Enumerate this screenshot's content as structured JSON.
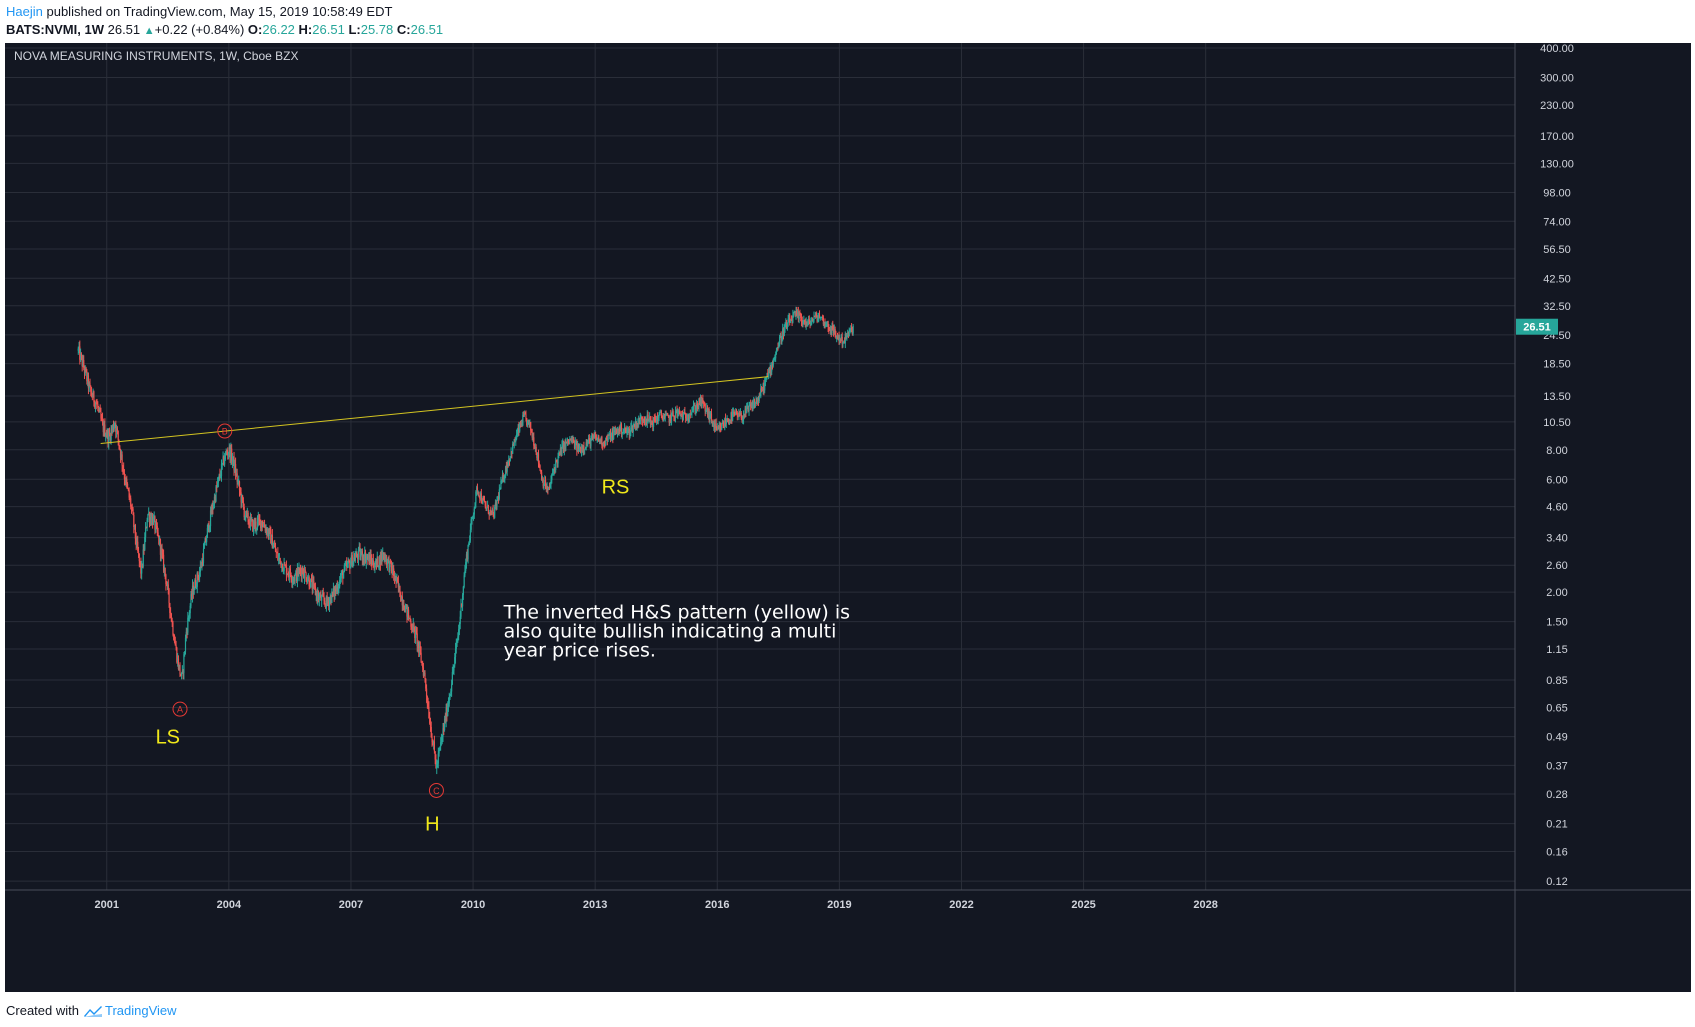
{
  "header": {
    "author": "Haejin",
    "published_text": "published on TradingView.com, May 15, 2019 10:58:49 EDT",
    "symbol": "BATS:NVMI, 1W",
    "last": "26.51",
    "change": "+0.22 (+0.84%)",
    "open_label": "O:",
    "open": "26.22",
    "high_label": "H:",
    "high": "26.51",
    "low_label": "L:",
    "low": "25.78",
    "close_label": "C:",
    "close": "26.51"
  },
  "footer": {
    "created_with": "Created with",
    "brand": "TradingView",
    "logo_icon": "tradingview-logo-icon"
  },
  "colors": {
    "background": "#131722",
    "grid": "#2a2e39",
    "axis_text": "#d1d4dc",
    "up_candle": "#26a69a",
    "down_candle": "#ef5350",
    "trendline": "#d4c521",
    "label_yellow": "#f0e81a",
    "marker_red": "#e53935",
    "price_tag": "#26a69a",
    "annotation_text": "#ffffff"
  },
  "chart_data": {
    "type": "candlestick",
    "title": "NOVA MEASURING INSTRUMENTS, 1W, Cboe BZX",
    "y_scale": "log",
    "ylim": [
      0.11,
      420
    ],
    "xlim": [
      1998.5,
      2035.6
    ],
    "x_ticks": [
      "2001",
      "2004",
      "2007",
      "2010",
      "2013",
      "2016",
      "2019",
      "2022",
      "2025",
      "2028"
    ],
    "y_ticks": [
      "400.00",
      "300.00",
      "230.00",
      "170.00",
      "130.00",
      "98.00",
      "74.00",
      "56.50",
      "42.50",
      "32.50",
      "24.50",
      "18.50",
      "13.50",
      "10.50",
      "8.00",
      "6.00",
      "4.60",
      "3.40",
      "2.60",
      "2.00",
      "1.50",
      "1.15",
      "0.85",
      "0.65",
      "0.49",
      "0.37",
      "0.28",
      "0.21",
      "0.16",
      "0.12"
    ],
    "last_price_tag": "26.51",
    "price_path": [
      [
        2000.3,
        21.0
      ],
      [
        2000.45,
        17.5
      ],
      [
        2000.6,
        14.0
      ],
      [
        2000.75,
        12.5
      ],
      [
        2000.9,
        10.0
      ],
      [
        2001.05,
        9.0
      ],
      [
        2001.2,
        10.5
      ],
      [
        2001.3,
        8.5
      ],
      [
        2001.45,
        6.0
      ],
      [
        2001.6,
        4.6
      ],
      [
        2001.75,
        3.0
      ],
      [
        2001.85,
        2.4
      ],
      [
        2002.0,
        4.3
      ],
      [
        2002.15,
        4.0
      ],
      [
        2002.3,
        3.2
      ],
      [
        2002.45,
        2.3
      ],
      [
        2002.6,
        1.5
      ],
      [
        2002.75,
        1.0
      ],
      [
        2002.85,
        0.85
      ],
      [
        2002.95,
        1.35
      ],
      [
        2003.1,
        2.0
      ],
      [
        2003.3,
        2.5
      ],
      [
        2003.5,
        3.8
      ],
      [
        2003.7,
        5.5
      ],
      [
        2003.9,
        7.5
      ],
      [
        2004.0,
        8.0
      ],
      [
        2004.1,
        7.2
      ],
      [
        2004.25,
        5.5
      ],
      [
        2004.4,
        4.2
      ],
      [
        2004.6,
        3.8
      ],
      [
        2004.8,
        4.0
      ],
      [
        2005.0,
        3.5
      ],
      [
        2005.2,
        2.8
      ],
      [
        2005.4,
        2.5
      ],
      [
        2005.6,
        2.3
      ],
      [
        2005.8,
        2.5
      ],
      [
        2006.0,
        2.2
      ],
      [
        2006.2,
        1.9
      ],
      [
        2006.4,
        1.8
      ],
      [
        2006.6,
        2.0
      ],
      [
        2006.8,
        2.4
      ],
      [
        2007.0,
        2.7
      ],
      [
        2007.2,
        2.9
      ],
      [
        2007.4,
        2.8
      ],
      [
        2007.6,
        2.6
      ],
      [
        2007.8,
        2.9
      ],
      [
        2008.0,
        2.5
      ],
      [
        2008.2,
        2.0
      ],
      [
        2008.4,
        1.6
      ],
      [
        2008.6,
        1.3
      ],
      [
        2008.8,
        0.9
      ],
      [
        2008.95,
        0.55
      ],
      [
        2009.1,
        0.36
      ],
      [
        2009.25,
        0.5
      ],
      [
        2009.4,
        0.7
      ],
      [
        2009.5,
        0.9
      ],
      [
        2009.65,
        1.4
      ],
      [
        2009.8,
        2.5
      ],
      [
        2009.95,
        3.8
      ],
      [
        2010.1,
        5.5
      ],
      [
        2010.3,
        4.6
      ],
      [
        2010.5,
        4.2
      ],
      [
        2010.7,
        5.8
      ],
      [
        2010.9,
        7.5
      ],
      [
        2011.1,
        9.5
      ],
      [
        2011.25,
        11.0
      ],
      [
        2011.4,
        10.0
      ],
      [
        2011.55,
        8.0
      ],
      [
        2011.7,
        6.0
      ],
      [
        2011.85,
        5.3
      ],
      [
        2012.0,
        6.8
      ],
      [
        2012.2,
        8.2
      ],
      [
        2012.4,
        8.8
      ],
      [
        2012.6,
        8.0
      ],
      [
        2012.8,
        8.5
      ],
      [
        2013.0,
        9.0
      ],
      [
        2013.2,
        8.6
      ],
      [
        2013.4,
        9.2
      ],
      [
        2013.6,
        9.8
      ],
      [
        2013.8,
        9.5
      ],
      [
        2014.0,
        10.3
      ],
      [
        2014.2,
        11.0
      ],
      [
        2014.4,
        10.4
      ],
      [
        2014.6,
        11.2
      ],
      [
        2014.8,
        10.8
      ],
      [
        2015.0,
        11.5
      ],
      [
        2015.2,
        11.0
      ],
      [
        2015.4,
        11.8
      ],
      [
        2015.6,
        12.8
      ],
      [
        2015.8,
        11.2
      ],
      [
        2016.0,
        9.5
      ],
      [
        2016.2,
        10.5
      ],
      [
        2016.4,
        11.2
      ],
      [
        2016.6,
        11.0
      ],
      [
        2016.8,
        12.0
      ],
      [
        2017.0,
        13.0
      ],
      [
        2017.15,
        15.0
      ],
      [
        2017.3,
        17.5
      ],
      [
        2017.45,
        21.0
      ],
      [
        2017.6,
        25.0
      ],
      [
        2017.75,
        27.5
      ],
      [
        2017.9,
        29.5
      ],
      [
        2018.05,
        29.0
      ],
      [
        2018.2,
        27.0
      ],
      [
        2018.35,
        28.5
      ],
      [
        2018.5,
        29.5
      ],
      [
        2018.65,
        27.5
      ],
      [
        2018.8,
        26.0
      ],
      [
        2018.95,
        24.0
      ],
      [
        2019.1,
        23.0
      ],
      [
        2019.25,
        25.0
      ],
      [
        2019.35,
        26.51
      ]
    ],
    "trendline": {
      "from": [
        2000.85,
        8.5
      ],
      "to": [
        2017.25,
        16.3
      ]
    },
    "waypoints": [
      {
        "label": "A",
        "x": 2002.8,
        "y": 0.64
      },
      {
        "label": "B",
        "x": 2003.9,
        "y": 9.6
      },
      {
        "label": "C",
        "x": 2009.1,
        "y": 0.29
      }
    ],
    "pattern_labels": [
      {
        "text": "LS",
        "x": 2002.5,
        "y": 0.49
      },
      {
        "text": "H",
        "x": 2009.0,
        "y": 0.21
      },
      {
        "text": "RS",
        "x": 2013.5,
        "y": 5.6
      }
    ],
    "annotation": {
      "lines": [
        "The inverted H&S pattern (yellow) is",
        "also quite bullish indicating a multi",
        "year price rises."
      ],
      "x": 2010.75,
      "y": 1.55
    }
  }
}
